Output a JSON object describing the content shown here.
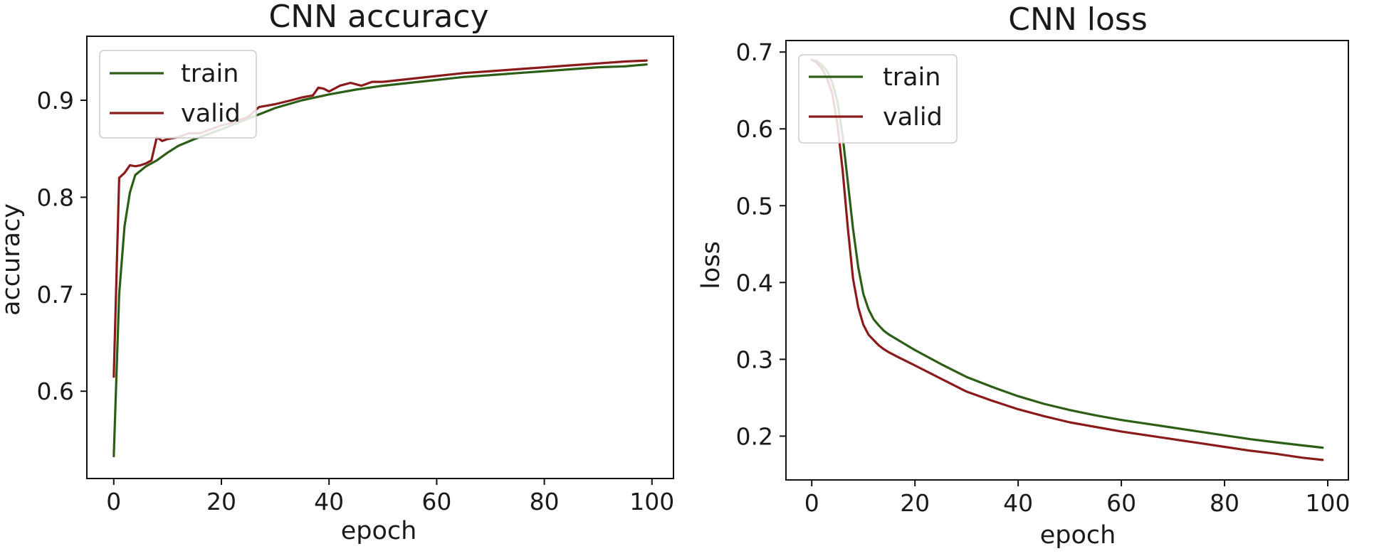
{
  "chart_data": [
    {
      "type": "line",
      "title": "CNN accuracy",
      "xlabel": "epoch",
      "ylabel": "accuracy",
      "xlim": [
        -5,
        104
      ],
      "ylim": [
        0.51,
        0.966
      ],
      "xticks": [
        0,
        20,
        40,
        60,
        80,
        100
      ],
      "yticks": [
        0.6,
        0.7,
        0.8,
        0.9
      ],
      "xtick_labels": [
        "0",
        "20",
        "40",
        "60",
        "80",
        "100"
      ],
      "ytick_labels": [
        "0.6",
        "0.7",
        "0.8",
        "0.9"
      ],
      "grid": false,
      "legend_position": "upper-left",
      "series": [
        {
          "name": "train",
          "color": "#2d5e16",
          "x": [
            0,
            1,
            2,
            3,
            4,
            6,
            8,
            10,
            12,
            15,
            20,
            25,
            30,
            35,
            40,
            45,
            50,
            55,
            60,
            65,
            70,
            75,
            80,
            85,
            90,
            95,
            99
          ],
          "y": [
            0.533,
            0.7,
            0.77,
            0.805,
            0.823,
            0.832,
            0.838,
            0.846,
            0.853,
            0.86,
            0.87,
            0.881,
            0.892,
            0.9,
            0.906,
            0.911,
            0.915,
            0.918,
            0.921,
            0.924,
            0.926,
            0.928,
            0.93,
            0.932,
            0.934,
            0.935,
            0.937
          ]
        },
        {
          "name": "valid",
          "color": "#8b1a1a",
          "x": [
            0,
            1,
            2,
            3,
            4,
            5,
            6,
            7,
            8,
            9,
            10,
            12,
            14,
            16,
            18,
            20,
            22,
            25,
            27,
            30,
            33,
            35,
            37,
            38,
            39,
            40,
            42,
            44,
            46,
            48,
            50,
            55,
            60,
            65,
            70,
            75,
            80,
            85,
            90,
            95,
            99
          ],
          "y": [
            0.615,
            0.82,
            0.825,
            0.833,
            0.832,
            0.833,
            0.835,
            0.838,
            0.862,
            0.858,
            0.86,
            0.862,
            0.866,
            0.866,
            0.87,
            0.874,
            0.877,
            0.883,
            0.893,
            0.896,
            0.9,
            0.903,
            0.905,
            0.913,
            0.912,
            0.909,
            0.915,
            0.918,
            0.915,
            0.919,
            0.919,
            0.922,
            0.925,
            0.928,
            0.93,
            0.932,
            0.934,
            0.936,
            0.938,
            0.94,
            0.941
          ]
        }
      ]
    },
    {
      "type": "line",
      "title": "CNN loss",
      "xlabel": "epoch",
      "ylabel": "loss",
      "xlim": [
        -5,
        104
      ],
      "ylim": [
        0.143,
        0.715
      ],
      "xticks": [
        0,
        20,
        40,
        60,
        80,
        100
      ],
      "yticks": [
        0.2,
        0.3,
        0.4,
        0.5,
        0.6,
        0.7
      ],
      "xtick_labels": [
        "0",
        "20",
        "40",
        "60",
        "80",
        "100"
      ],
      "ytick_labels": [
        "0.2",
        "0.3",
        "0.4",
        "0.5",
        "0.6",
        "0.7"
      ],
      "grid": false,
      "legend_position": "upper-left",
      "series": [
        {
          "name": "train",
          "color": "#2d5e16",
          "x": [
            0,
            1,
            2,
            3,
            4,
            5,
            6,
            7,
            8,
            9,
            10,
            11,
            12,
            13,
            14,
            15,
            17,
            20,
            25,
            30,
            35,
            40,
            45,
            50,
            55,
            60,
            65,
            70,
            75,
            80,
            85,
            90,
            95,
            99
          ],
          "y": [
            0.69,
            0.688,
            0.683,
            0.675,
            0.66,
            0.635,
            0.59,
            0.53,
            0.47,
            0.42,
            0.385,
            0.365,
            0.352,
            0.344,
            0.337,
            0.332,
            0.324,
            0.312,
            0.294,
            0.277,
            0.264,
            0.252,
            0.242,
            0.234,
            0.227,
            0.221,
            0.216,
            0.211,
            0.206,
            0.201,
            0.196,
            0.192,
            0.188,
            0.185
          ]
        },
        {
          "name": "valid",
          "color": "#8b1a1a",
          "x": [
            0,
            1,
            2,
            3,
            4,
            5,
            6,
            7,
            8,
            9,
            10,
            11,
            12,
            13,
            14,
            15,
            17,
            20,
            25,
            30,
            35,
            40,
            45,
            50,
            55,
            60,
            65,
            70,
            75,
            80,
            85,
            90,
            95,
            99
          ],
          "y": [
            0.69,
            0.686,
            0.678,
            0.665,
            0.645,
            0.605,
            0.545,
            0.47,
            0.405,
            0.368,
            0.345,
            0.332,
            0.325,
            0.318,
            0.313,
            0.309,
            0.302,
            0.292,
            0.275,
            0.258,
            0.246,
            0.235,
            0.226,
            0.218,
            0.212,
            0.206,
            0.201,
            0.196,
            0.191,
            0.186,
            0.181,
            0.177,
            0.172,
            0.169
          ]
        }
      ]
    }
  ]
}
